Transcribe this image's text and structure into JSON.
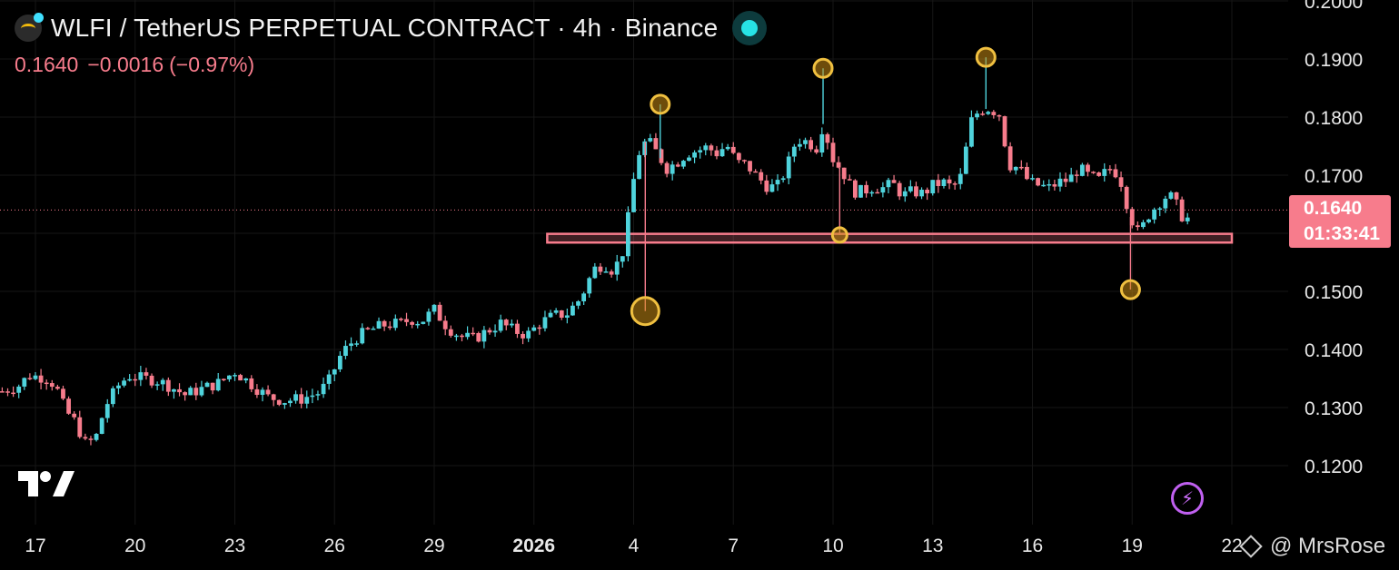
{
  "header": {
    "title": "WLFI / TetherUS PERPETUAL CONTRACT · 4h · Binance",
    "price": "0.1640",
    "change": "−0.0016",
    "change_pct": "(−0.97%)"
  },
  "price_tag": {
    "price": "0.1640",
    "countdown": "01:33:41"
  },
  "watermark": {
    "text": "@ MrsRose"
  },
  "colors": {
    "up": "#4fd3dc",
    "down": "#f77c8c",
    "marker": "#f0c040",
    "zone": "#f77c8c",
    "background": "#000000"
  },
  "chart_data": {
    "type": "candlestick",
    "title": "WLFI / TetherUS PERPETUAL CONTRACT · 4h · Binance",
    "ylim": [
      0.1135,
      0.2
    ],
    "y_ticks": [
      {
        "value": 0.12,
        "label": "0.1200"
      },
      {
        "value": 0.13,
        "label": "0.1300"
      },
      {
        "value": 0.14,
        "label": "0.1400"
      },
      {
        "value": 0.15,
        "label": "0.1500"
      },
      {
        "value": 0.17,
        "label": "0.1700"
      },
      {
        "value": 0.18,
        "label": "0.1800"
      },
      {
        "value": 0.19,
        "label": "0.1900"
      },
      {
        "value": 0.2,
        "label": "0.2000"
      }
    ],
    "x_ticks": [
      {
        "day": 17,
        "label": "17"
      },
      {
        "day": 20,
        "label": "20"
      },
      {
        "day": 23,
        "label": "23"
      },
      {
        "day": 26,
        "label": "26"
      },
      {
        "day": 29,
        "label": "29"
      },
      {
        "day": 32,
        "label": "2026",
        "bold": true
      },
      {
        "day": 35,
        "label": "4"
      },
      {
        "day": 38,
        "label": "7"
      },
      {
        "day": 41,
        "label": "10"
      },
      {
        "day": 44,
        "label": "13"
      },
      {
        "day": 47,
        "label": "16"
      },
      {
        "day": 50,
        "label": "19"
      },
      {
        "day": 53,
        "label": "22"
      }
    ],
    "x_range_days": [
      16.0,
      54.4
    ],
    "current_price": 0.164,
    "support_zone": {
      "from_day": 32.4,
      "to_day": 53.0,
      "low": 0.1584,
      "high": 0.1599
    },
    "markers": [
      {
        "day": 35.35,
        "price": 0.1466,
        "size": "large"
      },
      {
        "day": 35.8,
        "price": 0.1822,
        "size": "medium"
      },
      {
        "day": 40.7,
        "price": 0.1884,
        "size": "medium"
      },
      {
        "day": 41.2,
        "price": 0.1597,
        "size": "small"
      },
      {
        "day": 45.6,
        "price": 0.1903,
        "size": "medium"
      },
      {
        "day": 49.95,
        "price": 0.1503,
        "size": "medium"
      }
    ],
    "price_path": [
      [
        16.0,
        0.1328
      ],
      [
        16.5,
        0.1338
      ],
      [
        16.8,
        0.1355
      ],
      [
        17.3,
        0.1352
      ],
      [
        17.6,
        0.1338
      ],
      [
        17.9,
        0.1295
      ],
      [
        18.2,
        0.1275
      ],
      [
        18.5,
        0.1238
      ],
      [
        18.8,
        0.1245
      ],
      [
        19.1,
        0.1302
      ],
      [
        19.5,
        0.1338
      ],
      [
        19.8,
        0.1355
      ],
      [
        20.2,
        0.135
      ],
      [
        20.6,
        0.1348
      ],
      [
        21.0,
        0.1338
      ],
      [
        21.5,
        0.1322
      ],
      [
        22.0,
        0.1332
      ],
      [
        22.5,
        0.1342
      ],
      [
        23.0,
        0.1362
      ],
      [
        23.5,
        0.134
      ],
      [
        24.0,
        0.1318
      ],
      [
        24.5,
        0.1312
      ],
      [
        25.0,
        0.1315
      ],
      [
        25.5,
        0.1325
      ],
      [
        25.8,
        0.1342
      ],
      [
        26.2,
        0.1392
      ],
      [
        26.6,
        0.1418
      ],
      [
        27.0,
        0.1432
      ],
      [
        27.5,
        0.1442
      ],
      [
        28.0,
        0.1445
      ],
      [
        28.3,
        0.1452
      ],
      [
        28.6,
        0.1448
      ],
      [
        29.0,
        0.1468
      ],
      [
        29.4,
        0.1438
      ],
      [
        29.8,
        0.1422
      ],
      [
        30.2,
        0.1418
      ],
      [
        30.6,
        0.1432
      ],
      [
        31.0,
        0.1445
      ],
      [
        31.4,
        0.1432
      ],
      [
        31.8,
        0.1425
      ],
      [
        32.2,
        0.1446
      ],
      [
        32.6,
        0.1458
      ],
      [
        33.0,
        0.1462
      ],
      [
        33.4,
        0.1488
      ],
      [
        33.8,
        0.1538
      ],
      [
        34.1,
        0.1548
      ],
      [
        34.4,
        0.1535
      ],
      [
        34.7,
        0.1572
      ],
      [
        34.9,
        0.1652
      ],
      [
        35.1,
        0.1732
      ],
      [
        35.4,
        0.1762
      ],
      [
        35.7,
        0.1738
      ],
      [
        36.0,
        0.1712
      ],
      [
        36.3,
        0.1722
      ],
      [
        36.6,
        0.1738
      ],
      [
        36.9,
        0.1742
      ],
      [
        37.2,
        0.1748
      ],
      [
        37.5,
        0.1738
      ],
      [
        37.8,
        0.1752
      ],
      [
        38.1,
        0.1722
      ],
      [
        38.4,
        0.1718
      ],
      [
        38.7,
        0.1698
      ],
      [
        39.0,
        0.1682
      ],
      [
        39.3,
        0.1678
      ],
      [
        39.6,
        0.1712
      ],
      [
        39.9,
        0.1762
      ],
      [
        40.2,
        0.1758
      ],
      [
        40.5,
        0.1748
      ],
      [
        40.7,
        0.1788
      ],
      [
        41.0,
        0.1728
      ],
      [
        41.3,
        0.1705
      ],
      [
        41.6,
        0.1672
      ],
      [
        41.9,
        0.1672
      ],
      [
        42.2,
        0.168
      ],
      [
        42.5,
        0.1678
      ],
      [
        42.8,
        0.1685
      ],
      [
        43.1,
        0.1665
      ],
      [
        43.4,
        0.1672
      ],
      [
        43.7,
        0.1668
      ],
      [
        44.0,
        0.1682
      ],
      [
        44.3,
        0.1688
      ],
      [
        44.6,
        0.1678
      ],
      [
        44.9,
        0.1702
      ],
      [
        45.1,
        0.1788
      ],
      [
        45.4,
        0.1812
      ],
      [
        45.7,
        0.1815
      ],
      [
        46.0,
        0.1805
      ],
      [
        46.3,
        0.1718
      ],
      [
        46.6,
        0.1712
      ],
      [
        46.9,
        0.1688
      ],
      [
        47.2,
        0.1682
      ],
      [
        47.5,
        0.1678
      ],
      [
        47.8,
        0.1688
      ],
      [
        48.1,
        0.1692
      ],
      [
        48.4,
        0.1712
      ],
      [
        48.7,
        0.1698
      ],
      [
        49.0,
        0.1692
      ],
      [
        49.3,
        0.1712
      ],
      [
        49.6,
        0.1702
      ],
      [
        49.95,
        0.1628
      ],
      [
        50.2,
        0.1598
      ],
      [
        50.5,
        0.1632
      ],
      [
        50.8,
        0.1652
      ],
      [
        51.1,
        0.1668
      ],
      [
        51.4,
        0.1642
      ],
      [
        51.6,
        0.1618
      ],
      [
        51.8,
        0.164
      ]
    ]
  }
}
